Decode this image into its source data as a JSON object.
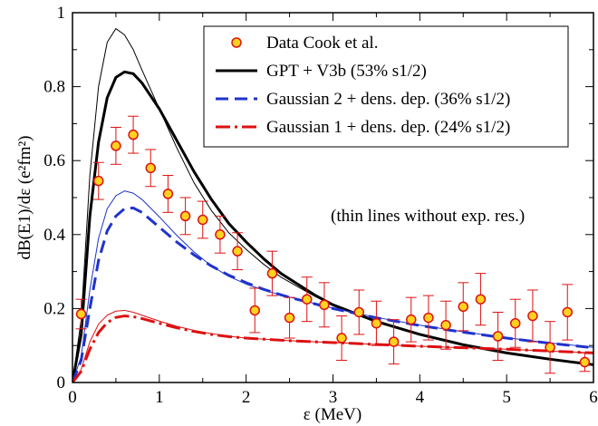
{
  "chart_data": {
    "type": "line",
    "xlabel": "ε  (MeV)",
    "ylabel": "dB(E1)/dε  (e²fm²)",
    "xlim": [
      0,
      6
    ],
    "ylim": [
      0,
      1
    ],
    "xticks": [
      0,
      1,
      2,
      3,
      4,
      5,
      6
    ],
    "yticks": [
      0,
      0.2,
      0.4,
      0.6,
      0.8,
      1
    ],
    "ytick_labels": [
      "0",
      "0.2",
      "0.4",
      "0.6",
      "0.8",
      "1"
    ],
    "grid": false,
    "legend_position": "top-right",
    "annotation": "(thin lines without exp. res.)",
    "legend": [
      {
        "label": "Data Cook et al.",
        "style": "marker"
      },
      {
        "label": "GPT + V3b (53% s1/2)",
        "style": "solid",
        "color": "#000000"
      },
      {
        "label": "Gaussian 2 + dens. dep. (36% s1/2)",
        "style": "dashed",
        "color": "#1f33cc"
      },
      {
        "label": "Gaussian 1 + dens. dep. (24% s1/2)",
        "style": "dashdot",
        "color": "#dd1111"
      }
    ],
    "data_points": {
      "name": "Data Cook et al.",
      "marker_fill": "#ffd21f",
      "marker_edge": "#dd1111",
      "points": [
        {
          "x": 0.1,
          "y": 0.185,
          "err": 0.04
        },
        {
          "x": 0.3,
          "y": 0.545,
          "err": 0.05
        },
        {
          "x": 0.5,
          "y": 0.64,
          "err": 0.05
        },
        {
          "x": 0.7,
          "y": 0.67,
          "err": 0.05
        },
        {
          "x": 0.9,
          "y": 0.58,
          "err": 0.05
        },
        {
          "x": 1.1,
          "y": 0.51,
          "err": 0.05
        },
        {
          "x": 1.3,
          "y": 0.45,
          "err": 0.05
        },
        {
          "x": 1.5,
          "y": 0.44,
          "err": 0.05
        },
        {
          "x": 1.7,
          "y": 0.4,
          "err": 0.05
        },
        {
          "x": 1.9,
          "y": 0.355,
          "err": 0.05
        },
        {
          "x": 2.1,
          "y": 0.195,
          "err": 0.06
        },
        {
          "x": 2.3,
          "y": 0.295,
          "err": 0.06
        },
        {
          "x": 2.5,
          "y": 0.175,
          "err": 0.055
        },
        {
          "x": 2.7,
          "y": 0.225,
          "err": 0.06
        },
        {
          "x": 2.9,
          "y": 0.21,
          "err": 0.06
        },
        {
          "x": 3.1,
          "y": 0.12,
          "err": 0.06
        },
        {
          "x": 3.3,
          "y": 0.19,
          "err": 0.06
        },
        {
          "x": 3.5,
          "y": 0.16,
          "err": 0.06
        },
        {
          "x": 3.7,
          "y": 0.11,
          "err": 0.06
        },
        {
          "x": 3.9,
          "y": 0.17,
          "err": 0.06
        },
        {
          "x": 4.1,
          "y": 0.175,
          "err": 0.06
        },
        {
          "x": 4.3,
          "y": 0.155,
          "err": 0.065
        },
        {
          "x": 4.5,
          "y": 0.205,
          "err": 0.065
        },
        {
          "x": 4.7,
          "y": 0.225,
          "err": 0.07
        },
        {
          "x": 4.9,
          "y": 0.125,
          "err": 0.065
        },
        {
          "x": 5.1,
          "y": 0.16,
          "err": 0.065
        },
        {
          "x": 5.3,
          "y": 0.18,
          "err": 0.07
        },
        {
          "x": 5.5,
          "y": 0.095,
          "err": 0.07
        },
        {
          "x": 5.7,
          "y": 0.19,
          "err": 0.075
        },
        {
          "x": 5.9,
          "y": 0.055,
          "err": 0.025
        }
      ]
    },
    "series": [
      {
        "label": "GPT + V3b (53% s1/2), thick",
        "color": "#000000",
        "style": "solid",
        "width": 3,
        "points": [
          [
            0,
            0
          ],
          [
            0.1,
            0.13
          ],
          [
            0.2,
            0.45
          ],
          [
            0.3,
            0.65
          ],
          [
            0.4,
            0.77
          ],
          [
            0.5,
            0.825
          ],
          [
            0.6,
            0.84
          ],
          [
            0.7,
            0.835
          ],
          [
            0.8,
            0.81
          ],
          [
            1.0,
            0.74
          ],
          [
            1.2,
            0.655
          ],
          [
            1.4,
            0.57
          ],
          [
            1.6,
            0.495
          ],
          [
            1.8,
            0.43
          ],
          [
            2.0,
            0.38
          ],
          [
            2.2,
            0.335
          ],
          [
            2.4,
            0.295
          ],
          [
            2.6,
            0.265
          ],
          [
            2.8,
            0.235
          ],
          [
            3.0,
            0.21
          ],
          [
            3.5,
            0.165
          ],
          [
            4.0,
            0.13
          ],
          [
            4.5,
            0.102
          ],
          [
            5.0,
            0.08
          ],
          [
            5.5,
            0.063
          ],
          [
            6.0,
            0.048
          ]
        ]
      },
      {
        "label": "GPT + V3b (53% s1/2), thin",
        "color": "#000000",
        "style": "solid",
        "width": 1,
        "points": [
          [
            0,
            0
          ],
          [
            0.1,
            0.17
          ],
          [
            0.2,
            0.56
          ],
          [
            0.3,
            0.8
          ],
          [
            0.4,
            0.92
          ],
          [
            0.5,
            0.957
          ],
          [
            0.6,
            0.94
          ],
          [
            0.7,
            0.9
          ],
          [
            0.8,
            0.845
          ],
          [
            1.0,
            0.74
          ],
          [
            1.2,
            0.635
          ],
          [
            1.4,
            0.54
          ],
          [
            1.6,
            0.465
          ],
          [
            1.8,
            0.405
          ],
          [
            2.0,
            0.36
          ],
          [
            2.2,
            0.32
          ],
          [
            2.4,
            0.285
          ],
          [
            2.6,
            0.258
          ],
          [
            2.8,
            0.232
          ],
          [
            3.0,
            0.21
          ],
          [
            3.5,
            0.165
          ],
          [
            4.0,
            0.13
          ],
          [
            4.5,
            0.102
          ],
          [
            5.0,
            0.08
          ],
          [
            5.5,
            0.062
          ],
          [
            6.0,
            0.047
          ]
        ]
      },
      {
        "label": "Gaussian 2 + dens. dep. (36% s1/2), thick",
        "color": "#1f33cc",
        "style": "dashed",
        "width": 3,
        "points": [
          [
            0,
            0
          ],
          [
            0.1,
            0.06
          ],
          [
            0.2,
            0.2
          ],
          [
            0.3,
            0.33
          ],
          [
            0.4,
            0.41
          ],
          [
            0.5,
            0.45
          ],
          [
            0.6,
            0.47
          ],
          [
            0.7,
            0.472
          ],
          [
            0.8,
            0.46
          ],
          [
            1.0,
            0.42
          ],
          [
            1.2,
            0.38
          ],
          [
            1.4,
            0.345
          ],
          [
            1.6,
            0.315
          ],
          [
            1.8,
            0.29
          ],
          [
            2.0,
            0.27
          ],
          [
            2.2,
            0.252
          ],
          [
            2.4,
            0.237
          ],
          [
            2.6,
            0.224
          ],
          [
            2.8,
            0.212
          ],
          [
            3.0,
            0.2
          ],
          [
            3.5,
            0.175
          ],
          [
            4.0,
            0.154
          ],
          [
            4.5,
            0.136
          ],
          [
            5.0,
            0.12
          ],
          [
            5.5,
            0.106
          ],
          [
            6.0,
            0.094
          ]
        ]
      },
      {
        "label": "Gaussian 2 + dens. dep. (36% s1/2), thin",
        "color": "#1f33cc",
        "style": "solid",
        "width": 1,
        "points": [
          [
            0,
            0
          ],
          [
            0.1,
            0.07
          ],
          [
            0.2,
            0.25
          ],
          [
            0.3,
            0.39
          ],
          [
            0.4,
            0.47
          ],
          [
            0.5,
            0.505
          ],
          [
            0.6,
            0.518
          ],
          [
            0.7,
            0.512
          ],
          [
            0.8,
            0.495
          ],
          [
            1.0,
            0.448
          ],
          [
            1.2,
            0.398
          ],
          [
            1.4,
            0.353
          ],
          [
            1.6,
            0.315
          ],
          [
            1.8,
            0.287
          ],
          [
            2.0,
            0.266
          ],
          [
            2.2,
            0.25
          ],
          [
            2.4,
            0.237
          ],
          [
            2.6,
            0.225
          ],
          [
            2.8,
            0.213
          ],
          [
            3.0,
            0.201
          ],
          [
            3.5,
            0.176
          ],
          [
            4.0,
            0.155
          ],
          [
            4.5,
            0.137
          ],
          [
            5.0,
            0.121
          ],
          [
            5.5,
            0.107
          ],
          [
            6.0,
            0.095
          ]
        ]
      },
      {
        "label": "Gaussian 1 + dens. dep. (24% s1/2), thick",
        "color": "#dd1111",
        "style": "dashdot",
        "width": 3,
        "points": [
          [
            0,
            0
          ],
          [
            0.1,
            0.03
          ],
          [
            0.2,
            0.09
          ],
          [
            0.3,
            0.135
          ],
          [
            0.4,
            0.162
          ],
          [
            0.5,
            0.176
          ],
          [
            0.6,
            0.18
          ],
          [
            0.7,
            0.178
          ],
          [
            0.8,
            0.173
          ],
          [
            1.0,
            0.16
          ],
          [
            1.2,
            0.148
          ],
          [
            1.4,
            0.138
          ],
          [
            1.6,
            0.13
          ],
          [
            1.8,
            0.124
          ],
          [
            2.0,
            0.12
          ],
          [
            2.5,
            0.113
          ],
          [
            3.0,
            0.108
          ],
          [
            3.5,
            0.103
          ],
          [
            4.0,
            0.098
          ],
          [
            4.5,
            0.094
          ],
          [
            5.0,
            0.09
          ],
          [
            5.5,
            0.085
          ],
          [
            6.0,
            0.08
          ]
        ]
      },
      {
        "label": "Gaussian 1 + dens. dep. (24% s1/2), thin",
        "color": "#dd1111",
        "style": "solid",
        "width": 1,
        "points": [
          [
            0,
            0
          ],
          [
            0.1,
            0.035
          ],
          [
            0.2,
            0.11
          ],
          [
            0.3,
            0.158
          ],
          [
            0.4,
            0.182
          ],
          [
            0.5,
            0.193
          ],
          [
            0.6,
            0.195
          ],
          [
            0.7,
            0.19
          ],
          [
            0.8,
            0.182
          ],
          [
            1.0,
            0.166
          ],
          [
            1.2,
            0.152
          ],
          [
            1.4,
            0.141
          ],
          [
            1.6,
            0.132
          ],
          [
            1.8,
            0.125
          ],
          [
            2.0,
            0.12
          ],
          [
            2.5,
            0.113
          ],
          [
            3.0,
            0.108
          ],
          [
            3.5,
            0.103
          ],
          [
            4.0,
            0.098
          ],
          [
            4.5,
            0.094
          ],
          [
            5.0,
            0.09
          ],
          [
            5.5,
            0.085
          ],
          [
            6.0,
            0.08
          ]
        ]
      }
    ]
  }
}
